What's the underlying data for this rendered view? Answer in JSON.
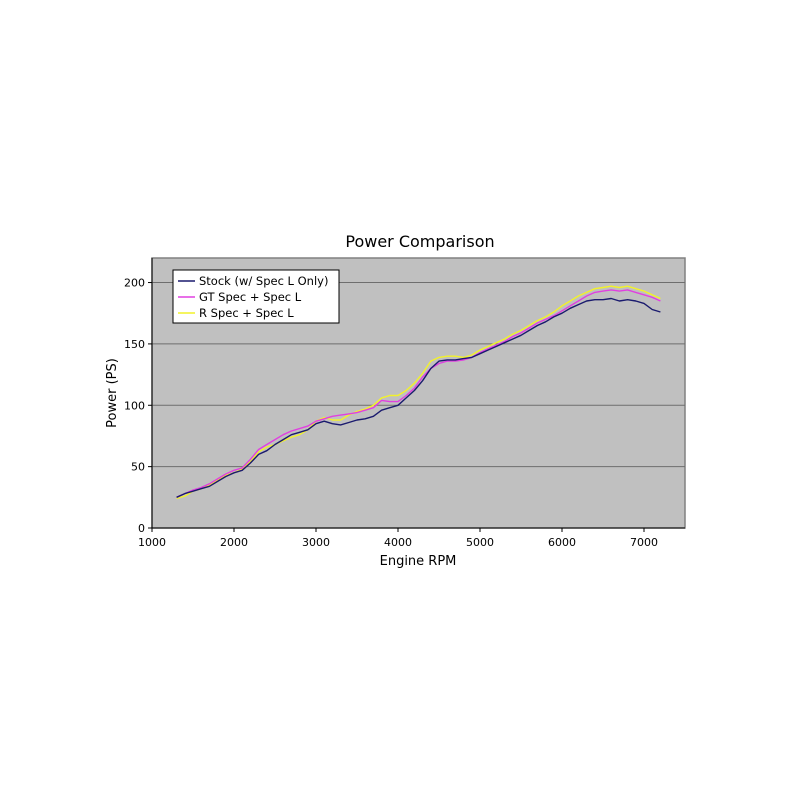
{
  "chart_data": {
    "type": "line",
    "title": "Power Comparison",
    "xlabel": "Engine RPM",
    "ylabel": "Power (PS)",
    "xlim": [
      1000,
      7500
    ],
    "ylim": [
      0,
      220
    ],
    "xticks": [
      "1000",
      "2000",
      "3000",
      "4000",
      "5000",
      "6000",
      "7000"
    ],
    "yticks": [
      "0",
      "50",
      "100",
      "150",
      "200"
    ],
    "grid": true,
    "legend_position": "top-left",
    "colors": {
      "plot_background": "#c0c0c0",
      "grid": "#6e6e6e",
      "frame": "#808080"
    },
    "series": [
      {
        "name": "Stock (w/ Spec L Only)",
        "color": "#1a1a6e",
        "x": [
          1300,
          1400,
          1500,
          1600,
          1700,
          1800,
          1900,
          2000,
          2100,
          2200,
          2300,
          2400,
          2500,
          2600,
          2700,
          2800,
          2900,
          3000,
          3100,
          3200,
          3300,
          3400,
          3500,
          3600,
          3700,
          3800,
          3900,
          4000,
          4100,
          4200,
          4300,
          4400,
          4500,
          4600,
          4700,
          4800,
          4900,
          5000,
          5100,
          5200,
          5300,
          5400,
          5500,
          5600,
          5700,
          5800,
          5900,
          6000,
          6100,
          6200,
          6300,
          6400,
          6500,
          6600,
          6700,
          6800,
          6900,
          7000,
          7100,
          7200
        ],
        "values": [
          25,
          28,
          30,
          32,
          34,
          38,
          42,
          45,
          47,
          53,
          60,
          63,
          68,
          72,
          76,
          78,
          80,
          85,
          87,
          85,
          84,
          86,
          88,
          89,
          91,
          96,
          98,
          100,
          106,
          112,
          120,
          130,
          136,
          137,
          137,
          138,
          139,
          142,
          145,
          148,
          151,
          154,
          157,
          161,
          165,
          168,
          172,
          175,
          179,
          182,
          185,
          186,
          186,
          187,
          185,
          186,
          185,
          183,
          178,
          176
        ]
      },
      {
        "name": "GT Spec + Spec L",
        "color": "#e040e0",
        "x": [
          1300,
          1400,
          1500,
          1600,
          1700,
          1800,
          1900,
          2000,
          2100,
          2200,
          2300,
          2400,
          2500,
          2600,
          2700,
          2800,
          2900,
          3000,
          3100,
          3200,
          3300,
          3400,
          3500,
          3600,
          3700,
          3800,
          3900,
          4000,
          4100,
          4200,
          4300,
          4400,
          4500,
          4600,
          4700,
          4800,
          4900,
          5000,
          5100,
          5200,
          5300,
          5400,
          5500,
          5600,
          5700,
          5800,
          5900,
          6000,
          6100,
          6200,
          6300,
          6400,
          6500,
          6600,
          6700,
          6800,
          6900,
          7000,
          7100,
          7200
        ],
        "values": [
          25,
          28,
          31,
          33,
          36,
          40,
          44,
          47,
          49,
          56,
          64,
          68,
          72,
          76,
          79,
          81,
          83,
          87,
          89,
          91,
          92,
          93,
          94,
          96,
          98,
          104,
          103,
          103,
          108,
          114,
          123,
          130,
          134,
          136,
          136,
          137,
          139,
          143,
          146,
          149,
          152,
          156,
          159,
          163,
          167,
          170,
          173,
          177,
          181,
          185,
          189,
          192,
          193,
          194,
          193,
          194,
          192,
          190,
          188,
          185
        ]
      },
      {
        "name": "R Spec + Spec L",
        "color": "#f2f22a",
        "x": [
          1300,
          1400,
          1500,
          1600,
          1700,
          1800,
          1900,
          2000,
          2100,
          2200,
          2300,
          2400,
          2500,
          2600,
          2700,
          2800,
          2900,
          3000,
          3100,
          3200,
          3300,
          3400,
          3500,
          3600,
          3700,
          3800,
          3900,
          4000,
          4100,
          4200,
          4300,
          4400,
          4500,
          4600,
          4700,
          4800,
          4900,
          5000,
          5100,
          5200,
          5300,
          5400,
          5500,
          5600,
          5700,
          5800,
          5900,
          6000,
          6100,
          6200,
          6300,
          6400,
          6500,
          6600,
          6700,
          6800,
          6900,
          7000,
          7100,
          7200
        ],
        "values": [
          24,
          26,
          30,
          32,
          35,
          39,
          43,
          45,
          48,
          54,
          62,
          66,
          68,
          71,
          74,
          76,
          80,
          87,
          90,
          88,
          88,
          92,
          95,
          97,
          100,
          106,
          108,
          108,
          112,
          118,
          126,
          136,
          139,
          140,
          140,
          139,
          141,
          145,
          148,
          151,
          154,
          158,
          161,
          165,
          169,
          172,
          176,
          181,
          185,
          189,
          192,
          195,
          196,
          197,
          196,
          197,
          195,
          193,
          190,
          187
        ]
      }
    ]
  }
}
